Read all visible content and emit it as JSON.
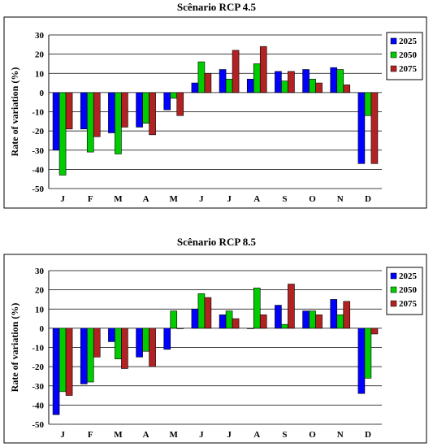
{
  "chart_data": [
    {
      "type": "bar",
      "title": "Scênario RCP 4.5",
      "ylabel": "Rate of variation (%)",
      "ylim": [
        -50,
        30
      ],
      "yticks": [
        30,
        20,
        10,
        0,
        -10,
        -20,
        -30,
        -40,
        -50
      ],
      "categories": [
        "J",
        "F",
        "M",
        "A",
        "M",
        "J",
        "J",
        "A",
        "S",
        "O",
        "N",
        "D"
      ],
      "grid": true,
      "legend_position": "top-right",
      "series": [
        {
          "name": "2025",
          "color": "#0000ff",
          "values": [
            -30,
            -19,
            -21,
            -18,
            -9,
            5,
            12,
            7,
            11,
            12,
            13,
            -37
          ]
        },
        {
          "name": "2050",
          "color": "#00cc00",
          "values": [
            -43,
            -31,
            -32,
            -16,
            -3,
            16,
            7,
            15,
            6,
            7,
            12,
            -12
          ]
        },
        {
          "name": "2075",
          "color": "#b22222",
          "values": [
            -19,
            -23,
            -18,
            -22,
            -12,
            10,
            22,
            24,
            11,
            5,
            4,
            -37
          ]
        }
      ]
    },
    {
      "type": "bar",
      "title": "Scênario RCP 8.5",
      "ylabel": "Rate of variation (%)",
      "ylim": [
        -50,
        30
      ],
      "yticks": [
        30,
        20,
        10,
        0,
        -10,
        -20,
        -30,
        -40,
        -50
      ],
      "categories": [
        "J",
        "F",
        "M",
        "A",
        "M",
        "J",
        "J",
        "A",
        "S",
        "O",
        "N",
        "D"
      ],
      "grid": true,
      "legend_position": "top-right",
      "series": [
        {
          "name": "2025",
          "color": "#0000ff",
          "values": [
            -45,
            -29,
            -7,
            -15,
            -11,
            10,
            7,
            0,
            12,
            9,
            15,
            -34
          ]
        },
        {
          "name": "2050",
          "color": "#00cc00",
          "values": [
            -33,
            -28,
            -16,
            -12,
            9,
            18,
            9,
            21,
            2,
            9,
            7,
            -26
          ]
        },
        {
          "name": "2075",
          "color": "#b22222",
          "values": [
            -35,
            -15,
            -21,
            -20,
            0,
            16,
            5,
            7,
            23,
            7,
            14,
            -3
          ]
        }
      ]
    }
  ]
}
